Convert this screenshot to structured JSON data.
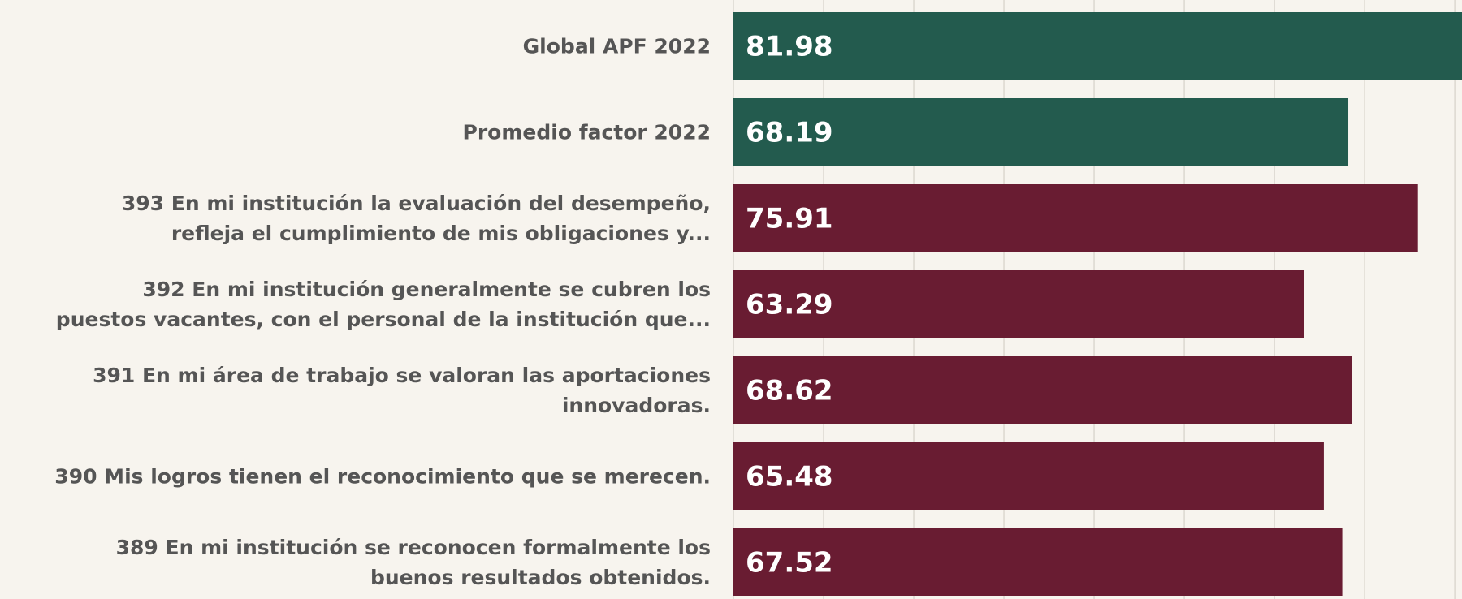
{
  "chart_data": {
    "type": "barh",
    "categories": [
      [
        "Global APF 2022"
      ],
      [
        "Promedio factor 2022"
      ],
      [
        "393 En mi institución la evaluación del desempeño,",
        "refleja el cumplimiento de mis obligaciones y..."
      ],
      [
        "392 En mi institución generalmente se cubren los",
        "puestos vacantes, con el personal de la institución que..."
      ],
      [
        "391 En mi área de trabajo se valoran las aportaciones",
        "innovadoras."
      ],
      [
        "390 Mis logros tienen el reconocimiento que se merecen."
      ],
      [
        "389 En mi institución se reconocen formalmente los",
        "buenos resultados obtenidos."
      ]
    ],
    "values": [
      81.98,
      68.19,
      75.91,
      63.29,
      68.62,
      65.48,
      67.52
    ],
    "colors": [
      "#235b4e",
      "#235b4e",
      "#691c32",
      "#691c32",
      "#691c32",
      "#691c32",
      "#691c32"
    ],
    "xlim": [
      0,
      80.8
    ],
    "xticks": [
      0,
      10,
      20,
      30,
      40,
      50,
      60,
      70,
      80
    ],
    "grid": true
  }
}
